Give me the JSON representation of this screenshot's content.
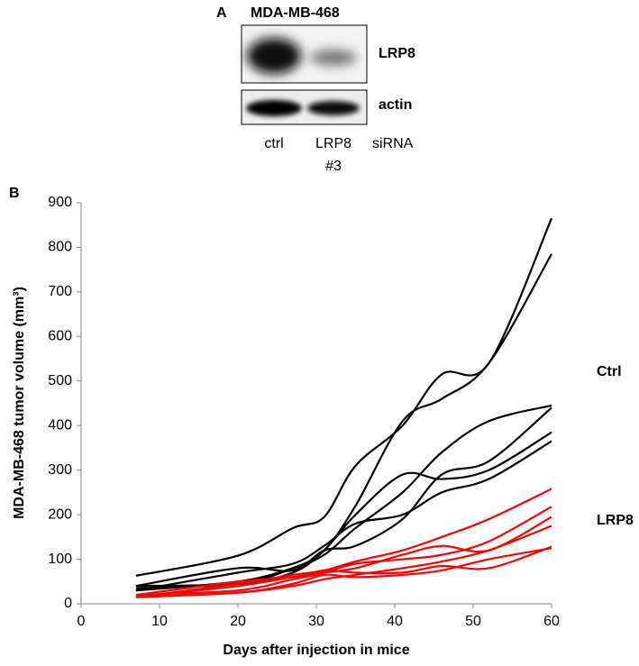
{
  "panel_a": {
    "label": "A",
    "title": "MDA-MB-468",
    "blots": [
      "LRP8",
      "actin"
    ],
    "lanes": [
      [
        "ctrl"
      ],
      [
        "LRP8",
        "#3"
      ]
    ],
    "treatment": "siRNA"
  },
  "chart_data": {
    "type": "line",
    "panel_label": "B",
    "x_label": "Days after injection in mice",
    "y_label": "MDA-MB-468 tumor volume (mm³)",
    "x": [
      7,
      20,
      27,
      31,
      35,
      41,
      46,
      52,
      60
    ],
    "xlim": [
      0,
      60
    ],
    "xticks": [
      0,
      10,
      20,
      30,
      40,
      50,
      60
    ],
    "ylim": [
      0,
      900
    ],
    "yticks": [
      0,
      100,
      200,
      300,
      400,
      500,
      600,
      700,
      800,
      900
    ],
    "series": [
      {
        "color": "#000000",
        "values": [
          63,
          108,
          170,
          195,
          310,
          400,
          515,
          540,
          865
        ]
      },
      {
        "color": "#000000",
        "values": [
          35,
          45,
          80,
          120,
          220,
          410,
          460,
          540,
          785
        ]
      },
      {
        "color": "#000000",
        "values": [
          30,
          50,
          80,
          110,
          170,
          250,
          340,
          410,
          445
        ]
      },
      {
        "color": "#000000",
        "values": [
          40,
          45,
          70,
          120,
          200,
          290,
          280,
          300,
          385
        ]
      },
      {
        "color": "#000000",
        "values": [
          30,
          70,
          90,
          130,
          180,
          200,
          250,
          280,
          365
        ]
      },
      {
        "color": "#000000",
        "values": [
          40,
          80,
          75,
          120,
          130,
          190,
          290,
          320,
          440
        ]
      },
      {
        "color": "#ff0000",
        "values": [
          15,
          45,
          65,
          75,
          95,
          120,
          150,
          190,
          258
        ]
      },
      {
        "color": "#ff0000",
        "values": [
          20,
          30,
          55,
          70,
          90,
          100,
          110,
          140,
          218
        ]
      },
      {
        "color": "#ff0000",
        "values": [
          15,
          40,
          60,
          70,
          80,
          110,
          130,
          120,
          195
        ]
      },
      {
        "color": "#ff0000",
        "values": [
          15,
          25,
          40,
          55,
          65,
          80,
          95,
          120,
          175
        ]
      },
      {
        "color": "#ff0000",
        "values": [
          20,
          50,
          60,
          75,
          70,
          70,
          85,
          80,
          128
        ]
      },
      {
        "color": "#ff0000",
        "values": [
          15,
          25,
          45,
          65,
          60,
          65,
          75,
          100,
          125
        ]
      }
    ],
    "annotations": [
      {
        "text": "Ctrl",
        "color": "#000000"
      },
      {
        "text": "LRP8",
        "color": "#f05050"
      }
    ]
  }
}
